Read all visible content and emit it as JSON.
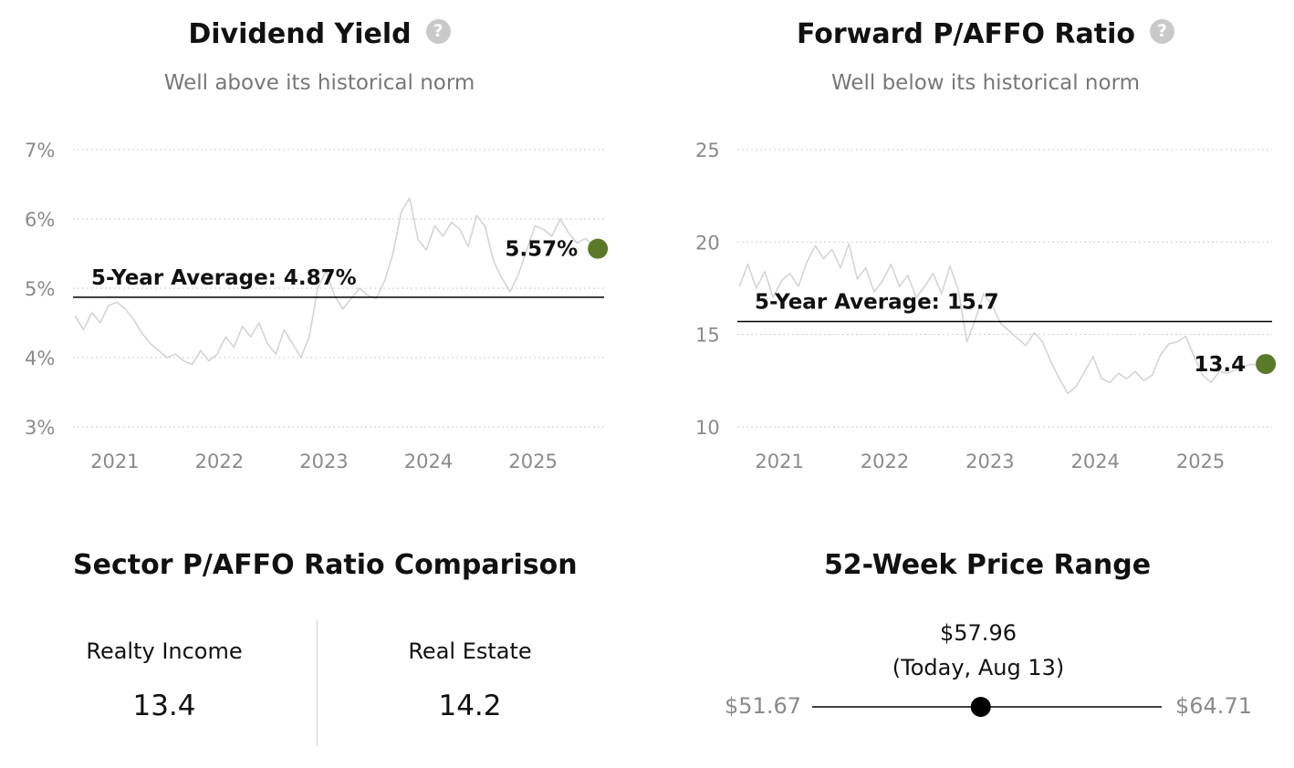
{
  "chart_data": [
    {
      "type": "line",
      "title": "Dividend Yield",
      "subtitle": "Well above its historical norm",
      "help_icon": "question-circle-icon",
      "y_ticks": [
        "7%",
        "6%",
        "5%",
        "4%",
        "3%"
      ],
      "y_tick_values": [
        7,
        6,
        5,
        4,
        3
      ],
      "ylim": [
        3,
        7
      ],
      "x_ticks": [
        "2021",
        "2022",
        "2023",
        "2024",
        "2025"
      ],
      "x_tick_values": [
        2021,
        2022,
        2023,
        2024,
        2025
      ],
      "xlim": [
        2020.6,
        2025.68
      ],
      "grid": true,
      "average": {
        "label": "5-Year Average: 4.87%",
        "value": 4.87
      },
      "current": {
        "label": "5.57%",
        "value": 5.57,
        "x": 2025.62
      },
      "series": [
        {
          "x": [
            2020.62,
            2020.7,
            2020.78,
            2020.86,
            2020.94,
            2021.02,
            2021.1,
            2021.18,
            2021.26,
            2021.34,
            2021.42,
            2021.5,
            2021.58,
            2021.66,
            2021.74,
            2021.82,
            2021.9,
            2021.98,
            2022.06,
            2022.14,
            2022.22,
            2022.3,
            2022.38,
            2022.46,
            2022.54,
            2022.62,
            2022.7,
            2022.78,
            2022.86,
            2022.94,
            2023.02,
            2023.1,
            2023.18,
            2023.26,
            2023.34,
            2023.42,
            2023.5,
            2023.58,
            2023.66,
            2023.74,
            2023.82,
            2023.9,
            2023.98,
            2024.06,
            2024.14,
            2024.22,
            2024.3,
            2024.38,
            2024.46,
            2024.54,
            2024.62,
            2024.7,
            2024.78,
            2024.86,
            2024.94,
            2025.02,
            2025.1,
            2025.18,
            2025.26,
            2025.34,
            2025.42,
            2025.5,
            2025.58,
            2025.62
          ],
          "values": [
            4.6,
            4.4,
            4.65,
            4.5,
            4.75,
            4.8,
            4.7,
            4.55,
            4.35,
            4.2,
            4.1,
            4.0,
            4.05,
            3.95,
            3.9,
            4.1,
            3.95,
            4.05,
            4.3,
            4.15,
            4.45,
            4.3,
            4.5,
            4.2,
            4.05,
            4.4,
            4.2,
            4.0,
            4.3,
            5.0,
            5.25,
            4.9,
            4.7,
            4.85,
            5.0,
            4.9,
            4.85,
            5.1,
            5.5,
            6.1,
            6.3,
            5.7,
            5.55,
            5.9,
            5.75,
            5.95,
            5.85,
            5.6,
            6.05,
            5.9,
            5.4,
            5.15,
            4.95,
            5.2,
            5.55,
            5.9,
            5.85,
            5.75,
            6.0,
            5.8,
            5.65,
            5.72,
            5.6,
            5.57
          ]
        }
      ]
    },
    {
      "type": "line",
      "title": "Forward P/AFFO Ratio",
      "subtitle": "Well below its historical norm",
      "help_icon": "question-circle-icon",
      "y_ticks": [
        "25",
        "20",
        "15",
        "10"
      ],
      "y_tick_values": [
        25,
        20,
        15,
        10
      ],
      "ylim": [
        10,
        25
      ],
      "x_ticks": [
        "2021",
        "2022",
        "2023",
        "2024",
        "2025"
      ],
      "x_tick_values": [
        2021,
        2022,
        2023,
        2024,
        2025
      ],
      "xlim": [
        2020.6,
        2025.68
      ],
      "grid": true,
      "average": {
        "label": "5-Year Average: 15.7",
        "value": 15.7
      },
      "current": {
        "label": "13.4",
        "value": 13.4,
        "x": 2025.62
      },
      "series": [
        {
          "x": [
            2020.62,
            2020.7,
            2020.78,
            2020.86,
            2020.94,
            2021.02,
            2021.1,
            2021.18,
            2021.26,
            2021.34,
            2021.42,
            2021.5,
            2021.58,
            2021.66,
            2021.74,
            2021.82,
            2021.9,
            2021.98,
            2022.06,
            2022.14,
            2022.22,
            2022.3,
            2022.38,
            2022.46,
            2022.54,
            2022.62,
            2022.7,
            2022.78,
            2022.86,
            2022.94,
            2023.02,
            2023.1,
            2023.18,
            2023.26,
            2023.34,
            2023.42,
            2023.5,
            2023.58,
            2023.66,
            2023.74,
            2023.82,
            2023.9,
            2023.98,
            2024.06,
            2024.14,
            2024.22,
            2024.3,
            2024.38,
            2024.46,
            2024.54,
            2024.62,
            2024.7,
            2024.78,
            2024.86,
            2024.94,
            2025.02,
            2025.1,
            2025.18,
            2025.26,
            2025.34,
            2025.42,
            2025.5,
            2025.58,
            2025.62
          ],
          "values": [
            17.6,
            18.8,
            17.5,
            18.4,
            17.0,
            17.9,
            18.3,
            17.6,
            18.9,
            19.8,
            19.1,
            19.6,
            18.6,
            19.9,
            18.0,
            18.6,
            17.3,
            17.9,
            18.8,
            17.6,
            18.2,
            17.0,
            17.6,
            18.3,
            17.2,
            18.7,
            17.4,
            14.6,
            15.8,
            17.2,
            16.6,
            15.6,
            15.2,
            14.8,
            14.4,
            15.1,
            14.6,
            13.5,
            12.6,
            11.8,
            12.2,
            13.0,
            13.8,
            12.6,
            12.4,
            12.9,
            12.6,
            13.0,
            12.5,
            12.8,
            13.9,
            14.5,
            14.6,
            14.9,
            13.8,
            12.8,
            12.4,
            13.0,
            12.9,
            13.1,
            13.3,
            13.4,
            13.2,
            13.4
          ]
        }
      ]
    }
  ],
  "sector": {
    "title": "Sector P/AFFO Ratio Comparison",
    "items": [
      {
        "label": "Realty Income",
        "value": "13.4"
      },
      {
        "label": "Real Estate",
        "value": "14.2"
      }
    ]
  },
  "range": {
    "title": "52-Week Price Range",
    "current": "$57.96",
    "note": "(Today, Aug 13)",
    "low": "$51.67",
    "high": "$64.71",
    "low_value": 51.67,
    "high_value": 64.71,
    "current_value": 57.96
  },
  "colors": {
    "accent": "#5b7a29",
    "line": "#d4d4d4",
    "grid": "#cccccc",
    "axis_text": "#8a8a8a"
  }
}
